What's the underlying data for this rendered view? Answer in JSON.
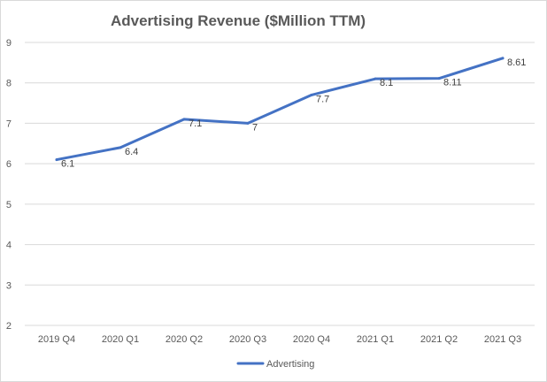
{
  "chart_data": {
    "type": "line",
    "title": "Advertising Revenue ($Million TTM)",
    "xlabel": "",
    "ylabel": "",
    "categories": [
      "2019 Q4",
      "2020 Q1",
      "2020 Q2",
      "2020 Q3",
      "2020 Q4",
      "2021 Q1",
      "2021 Q2",
      "2021 Q3"
    ],
    "series": [
      {
        "name": "Advertising",
        "values": [
          6.1,
          6.4,
          7.1,
          7,
          7.7,
          8.1,
          8.11,
          8.61
        ],
        "data_labels": [
          "6.1",
          "6.4",
          "7.1",
          "7",
          "7.7",
          "8.1",
          "8.11",
          "8.61"
        ],
        "color": "#4472C4"
      }
    ],
    "ylim": [
      2,
      9
    ],
    "yticks": [
      2,
      3,
      4,
      5,
      6,
      7,
      8,
      9
    ],
    "ytick_labels": [
      "2",
      "3",
      "4",
      "5",
      "6",
      "7",
      "8",
      "9"
    ],
    "grid": true,
    "legend": {
      "position": "bottom",
      "entries": [
        "Advertising"
      ]
    }
  },
  "colors": {
    "series": "#4472C4",
    "grid": "#d9d9d9",
    "text": "#595959",
    "label": "#404040"
  }
}
